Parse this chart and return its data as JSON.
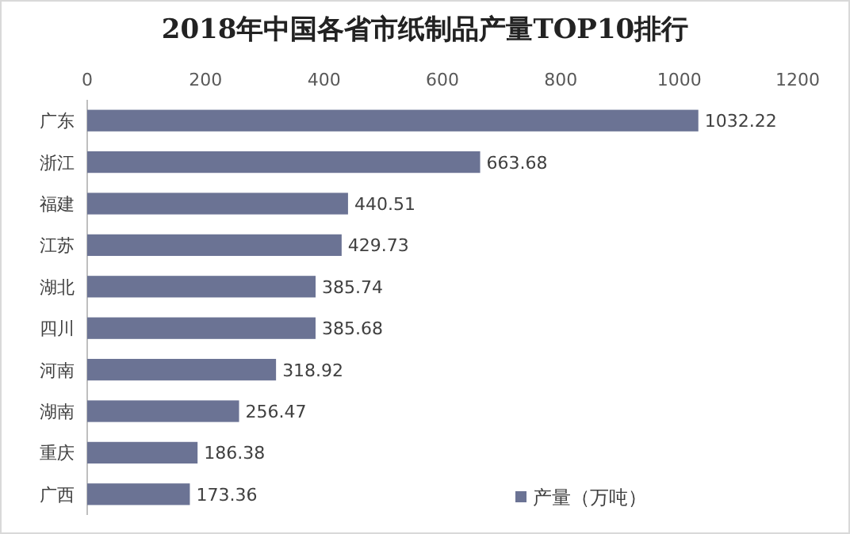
{
  "chart_data": {
    "type": "bar",
    "orientation": "horizontal",
    "title": "2018年中国各省市纸制品产量TOP10排行",
    "categories": [
      "广东",
      "浙江",
      "福建",
      "江苏",
      "湖北",
      "四川",
      "河南",
      "湖南",
      "重庆",
      "广西"
    ],
    "series": [
      {
        "name": "产量（万吨）",
        "color": "#6b7394",
        "values": [
          1032.22,
          663.68,
          440.51,
          429.73,
          385.74,
          385.68,
          318.92,
          256.47,
          186.38,
          173.36
        ]
      }
    ],
    "xlim": [
      0,
      1200
    ],
    "xticks": [
      0,
      200,
      400,
      600,
      800,
      1000,
      1200
    ],
    "data_labels": true,
    "legend": "bottom right"
  }
}
